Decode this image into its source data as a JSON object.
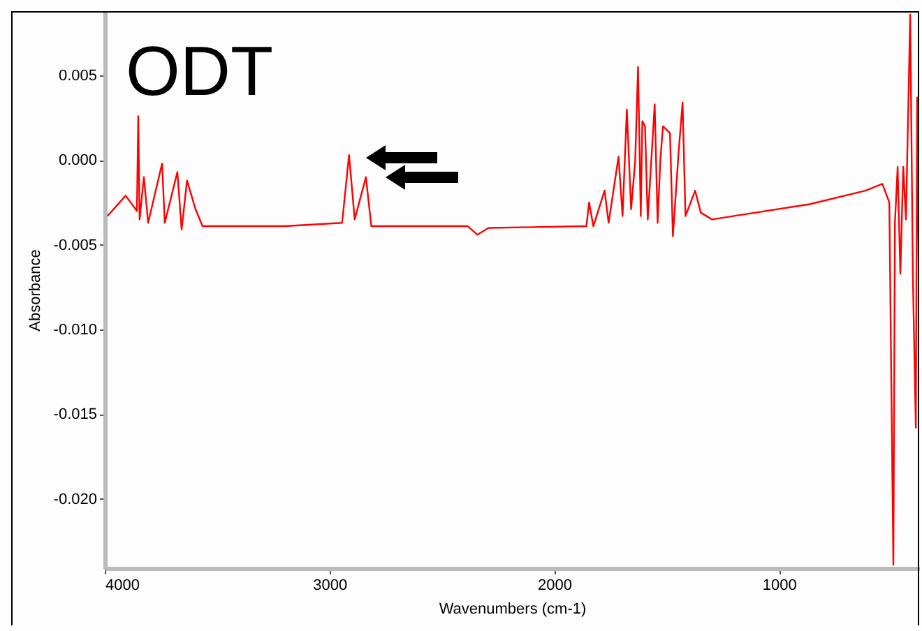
{
  "chart_data": {
    "type": "line",
    "title": "ODT",
    "xlabel": "Wavenumbers (cm-1)",
    "ylabel": "Absorbance",
    "xlim": [
      4000,
      376
    ],
    "ylim": [
      -0.0241,
      0.0088
    ],
    "xticks": [
      4000,
      3000,
      2000,
      1000
    ],
    "yticks": [
      {
        "value": 0.005,
        "label": "0.005"
      },
      {
        "value": 0,
        "label": "0.000"
      },
      {
        "value": -0.005,
        "label": "-0.005"
      },
      {
        "value": -0.01,
        "label": "-0.010"
      },
      {
        "value": -0.015,
        "label": "-0.015"
      },
      {
        "value": -0.02,
        "label": "-0.020"
      }
    ],
    "grid": false,
    "marker": "none",
    "line_style": "solid",
    "series": [
      {
        "color": "#ff0000",
        "x": [
          3988,
          3907,
          3857,
          3851,
          3845,
          3826,
          3807,
          3745,
          3733,
          3677,
          3658,
          3634,
          3596,
          3565,
          3472,
          3200,
          2944,
          2913,
          2888,
          2838,
          2814,
          2600,
          2385,
          2342,
          2292,
          1857,
          1845,
          1826,
          1776,
          1758,
          1714,
          1696,
          1677,
          1658,
          1640,
          1627,
          1615,
          1608,
          1596,
          1584,
          1553,
          1540,
          1528,
          1516,
          1485,
          1472,
          1447,
          1429,
          1416,
          1373,
          1348,
          1298,
          1155,
          863,
          615,
          540,
          509,
          491,
          484,
          472,
          460,
          447,
          435,
          416,
          404,
          391,
          385,
          378
        ],
        "values": [
          -0.0033,
          -0.0021,
          -0.003,
          0.0026,
          -0.0035,
          -0.001,
          -0.0037,
          -0.0002,
          -0.0037,
          -0.0007,
          -0.0041,
          -0.0012,
          -0.0029,
          -0.0039,
          -0.0039,
          -0.0039,
          -0.0037,
          0.0003,
          -0.0035,
          -0.001,
          -0.0039,
          -0.0039,
          -0.0039,
          -0.0044,
          -0.004,
          -0.0039,
          -0.0025,
          -0.0039,
          -0.0018,
          -0.0037,
          0.0002,
          -0.0033,
          0.003,
          -0.0029,
          -0.0001,
          0.0055,
          -0.0033,
          0.0023,
          0.002,
          -0.0035,
          0.0033,
          -0.0037,
          0.0,
          0.002,
          0.0016,
          -0.0045,
          0.0004,
          0.0034,
          -0.0033,
          -0.0018,
          -0.0031,
          -0.0035,
          -0.0032,
          -0.0026,
          -0.0018,
          -0.0014,
          -0.0025,
          -0.0239,
          -0.0037,
          -0.0004,
          -0.0067,
          -0.0004,
          -0.0035,
          0.0086,
          -0.007,
          -0.0158,
          0.0037,
          -0.007
        ]
      }
    ]
  }
}
